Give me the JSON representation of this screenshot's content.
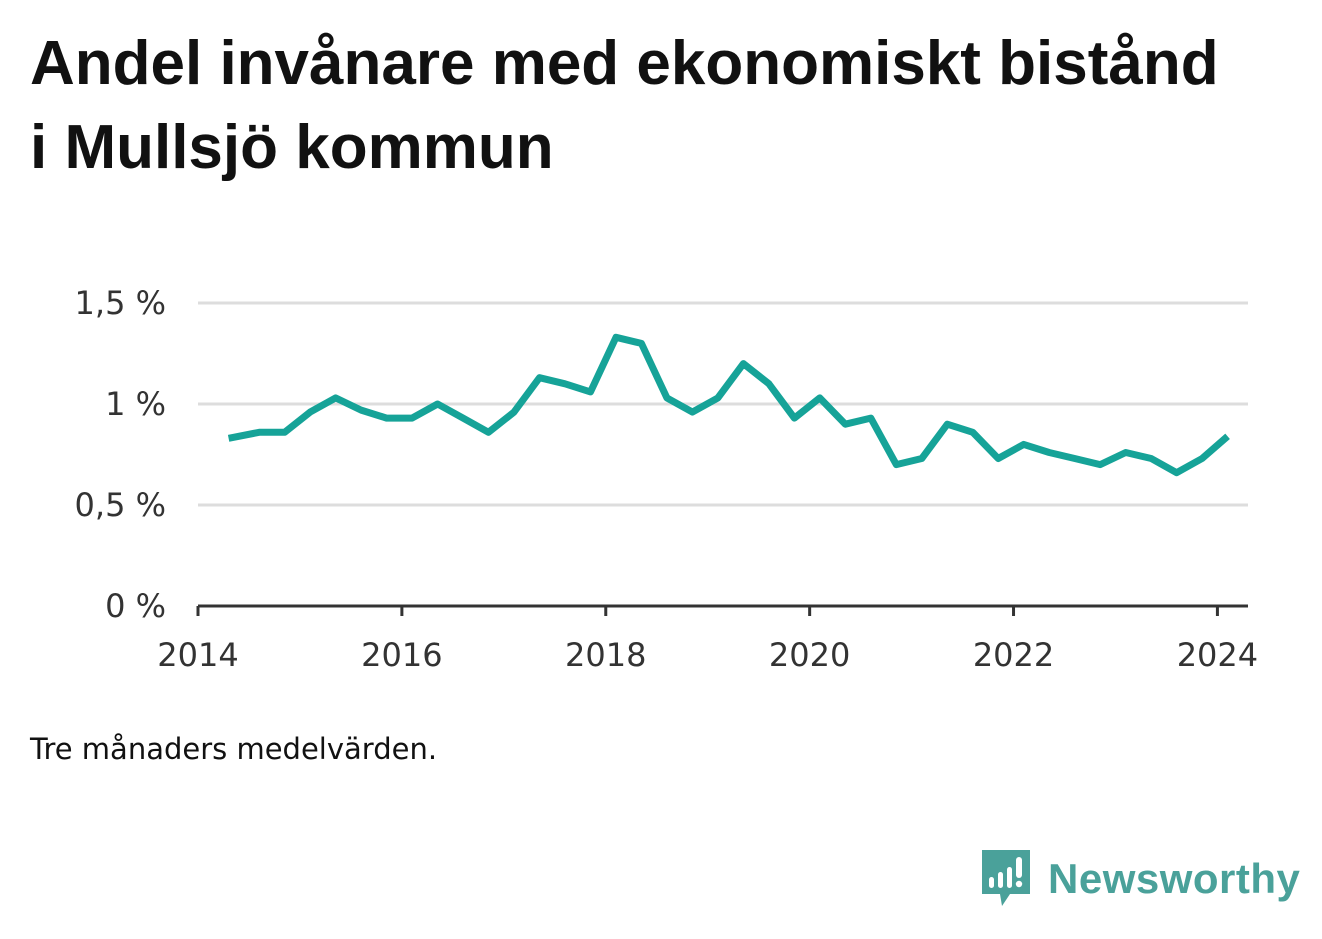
{
  "title": "Andel invånare med ekonomiskt bistånd i Mullsjö kommun",
  "note": "Tre månaders medelvärden.",
  "brand": {
    "name": "Newsworthy",
    "icon": "newsworthy-logo-icon",
    "color": "#4aa19a"
  },
  "chart_data": {
    "type": "line",
    "line_color": "#16a398",
    "grid": true,
    "ylim": [
      0,
      1.5
    ],
    "xlim": [
      2014,
      2024.3
    ],
    "y_ticks": [
      {
        "value": 0,
        "label": "0 %"
      },
      {
        "value": 0.5,
        "label": "0,5 %"
      },
      {
        "value": 1,
        "label": "1 %"
      },
      {
        "value": 1.5,
        "label": "1,5 %"
      }
    ],
    "x_ticks": [
      {
        "value": 2014,
        "label": "2014"
      },
      {
        "value": 2016,
        "label": "2016"
      },
      {
        "value": 2018,
        "label": "2018"
      },
      {
        "value": 2020,
        "label": "2020"
      },
      {
        "value": 2022,
        "label": "2022"
      },
      {
        "value": 2024,
        "label": "2024"
      }
    ],
    "series": [
      {
        "x": [
          2014.3,
          2014.6,
          2014.85,
          2015.1,
          2015.35,
          2015.6,
          2015.85,
          2016.1,
          2016.35,
          2016.6,
          2016.85,
          2017.1,
          2017.35,
          2017.6,
          2017.85,
          2018.1,
          2018.35,
          2018.6,
          2018.85,
          2019.1,
          2019.35,
          2019.6,
          2019.85,
          2020.1,
          2020.35,
          2020.6,
          2020.85,
          2021.1,
          2021.35,
          2021.6,
          2021.85,
          2022.1,
          2022.35,
          2022.6,
          2022.85,
          2023.1,
          2023.35,
          2023.6,
          2023.85,
          2024.1
        ],
        "values": [
          0.83,
          0.86,
          0.86,
          0.96,
          1.03,
          0.97,
          0.93,
          0.93,
          1.0,
          0.93,
          0.86,
          0.96,
          1.13,
          1.1,
          1.06,
          1.33,
          1.3,
          1.03,
          0.96,
          1.03,
          1.2,
          1.1,
          0.93,
          1.03,
          0.9,
          0.93,
          0.7,
          0.73,
          0.9,
          0.86,
          0.73,
          0.8,
          0.76,
          0.73,
          0.7,
          0.76,
          0.73,
          0.66,
          0.73,
          0.84
        ]
      }
    ]
  }
}
